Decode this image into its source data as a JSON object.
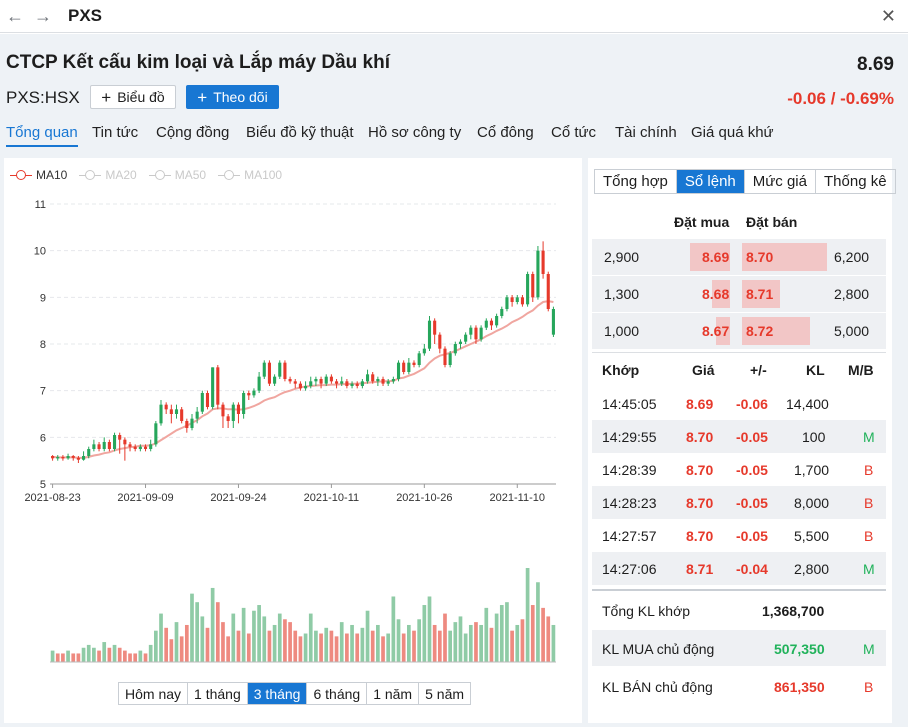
{
  "topbar": {
    "title": "PXS",
    "back_icon": "←",
    "forward_icon": "→",
    "close_icon": "✕"
  },
  "header": {
    "company": "CTCP Kết cấu kim loại và Lắp máy Dầu khí",
    "price": "8.69",
    "ticker": "PXS:HSX",
    "chart_button": "Biểu đồ",
    "follow_button": "Theo dõi",
    "change": "-0.06 / -0.69%"
  },
  "tabs": [
    "Tổng quan",
    "Tin tức",
    "Cộng đồng",
    "Biểu đồ kỹ thuật",
    "Hồ sơ công ty",
    "Cổ đông",
    "Cổ tức",
    "Tài chính",
    "Giá quá khứ"
  ],
  "chart": {
    "legend": [
      "MA10",
      "MA20",
      "MA50",
      "MA100"
    ],
    "ranges": [
      "Hôm nay",
      "1 tháng",
      "3 tháng",
      "6 tháng",
      "1 năm",
      "5 năm"
    ],
    "active_range": "3 tháng"
  },
  "chart_data": {
    "type": "candlestick",
    "y_ticks": [
      "11",
      "10",
      "9",
      "8",
      "7",
      "6",
      "5"
    ],
    "ylim": [
      5,
      11
    ],
    "x_ticks": [
      "2021-08-23",
      "2021-09-09",
      "2021-09-24",
      "2021-10-11",
      "2021-10-26",
      "2021-11-10"
    ],
    "colors": {
      "up": "#26a65b",
      "down": "#e6392b",
      "ma10": "#f0a6a0",
      "vol_up": "#8fcba6",
      "vol_down": "#ee8a80"
    },
    "candles": [
      [
        5.6,
        5.55,
        5.62,
        5.5
      ],
      [
        5.55,
        5.58,
        5.62,
        5.5
      ],
      [
        5.58,
        5.55,
        5.62,
        5.5
      ],
      [
        5.55,
        5.6,
        5.65,
        5.52
      ],
      [
        5.6,
        5.56,
        5.62,
        5.5
      ],
      [
        5.56,
        5.52,
        5.6,
        5.45
      ],
      [
        5.52,
        5.6,
        5.7,
        5.5
      ],
      [
        5.6,
        5.75,
        5.8,
        5.55
      ],
      [
        5.75,
        5.85,
        5.95,
        5.7
      ],
      [
        5.85,
        5.75,
        5.9,
        5.7
      ],
      [
        5.75,
        5.9,
        6.0,
        5.7
      ],
      [
        5.9,
        5.75,
        5.95,
        5.7
      ],
      [
        5.75,
        6.05,
        6.1,
        5.7
      ],
      [
        6.05,
        5.95,
        6.1,
        5.65
      ],
      [
        5.95,
        5.85,
        6.0,
        5.5
      ],
      [
        5.85,
        5.8,
        5.9,
        5.7
      ],
      [
        5.8,
        5.75,
        5.85,
        5.7
      ],
      [
        5.75,
        5.8,
        5.85,
        5.7
      ],
      [
        5.8,
        5.75,
        5.85,
        5.7
      ],
      [
        5.75,
        5.85,
        5.95,
        5.7
      ],
      [
        5.85,
        6.3,
        6.35,
        5.8
      ],
      [
        6.3,
        6.7,
        6.8,
        6.25
      ],
      [
        6.7,
        6.6,
        6.75,
        6.5
      ],
      [
        6.6,
        6.5,
        6.7,
        6.3
      ],
      [
        6.5,
        6.6,
        6.7,
        6.4
      ],
      [
        6.6,
        6.35,
        6.65,
        6.3
      ],
      [
        6.35,
        6.2,
        6.4,
        6.1
      ],
      [
        6.2,
        6.4,
        6.5,
        6.15
      ],
      [
        6.4,
        6.55,
        6.65,
        6.3
      ],
      [
        6.55,
        6.95,
        7.0,
        6.5
      ],
      [
        6.95,
        6.65,
        7.0,
        6.6
      ],
      [
        6.65,
        7.5,
        7.5,
        6.6
      ],
      [
        7.5,
        6.7,
        7.55,
        6.6
      ],
      [
        6.7,
        6.45,
        6.75,
        6.2
      ],
      [
        6.45,
        6.35,
        6.5,
        6.2
      ],
      [
        6.35,
        6.7,
        6.75,
        6.2
      ],
      [
        6.7,
        6.5,
        6.75,
        6.3
      ],
      [
        6.5,
        6.95,
        7.0,
        6.4
      ],
      [
        6.95,
        6.9,
        7.0,
        6.8
      ],
      [
        6.9,
        7.0,
        7.05,
        6.85
      ],
      [
        7.0,
        7.3,
        7.4,
        6.95
      ],
      [
        7.3,
        7.6,
        7.65,
        7.25
      ],
      [
        7.6,
        7.15,
        7.65,
        7.1
      ],
      [
        7.15,
        7.3,
        7.35,
        7.1
      ],
      [
        7.3,
        7.6,
        7.65,
        7.25
      ],
      [
        7.6,
        7.25,
        7.65,
        7.2
      ],
      [
        7.25,
        7.2,
        7.3,
        7.15
      ],
      [
        7.2,
        7.15,
        7.25,
        7.05
      ],
      [
        7.15,
        7.05,
        7.2,
        7.0
      ],
      [
        7.05,
        7.1,
        7.2,
        7.0
      ],
      [
        7.1,
        7.2,
        7.3,
        7.05
      ],
      [
        7.2,
        7.25,
        7.3,
        7.1
      ],
      [
        7.25,
        7.15,
        7.3,
        7.05
      ],
      [
        7.15,
        7.3,
        7.35,
        7.1
      ],
      [
        7.3,
        7.2,
        7.35,
        7.15
      ],
      [
        7.2,
        7.15,
        7.25,
        7.05
      ],
      [
        7.15,
        7.2,
        7.3,
        7.1
      ],
      [
        7.2,
        7.1,
        7.25,
        7.05
      ],
      [
        7.1,
        7.15,
        7.2,
        7.05
      ],
      [
        7.15,
        7.1,
        7.2,
        7.05
      ],
      [
        7.1,
        7.2,
        7.25,
        7.05
      ],
      [
        7.2,
        7.35,
        7.45,
        7.15
      ],
      [
        7.35,
        7.2,
        7.4,
        7.15
      ],
      [
        7.2,
        7.25,
        7.3,
        7.1
      ],
      [
        7.25,
        7.15,
        7.3,
        7.1
      ],
      [
        7.15,
        7.2,
        7.25,
        7.1
      ],
      [
        7.2,
        7.25,
        7.3,
        7.15
      ],
      [
        7.25,
        7.6,
        7.65,
        7.2
      ],
      [
        7.6,
        7.4,
        7.65,
        7.35
      ],
      [
        7.4,
        7.6,
        7.7,
        7.35
      ],
      [
        7.6,
        7.55,
        7.65,
        7.5
      ],
      [
        7.55,
        7.8,
        7.85,
        7.5
      ],
      [
        7.8,
        7.9,
        8.0,
        7.75
      ],
      [
        7.9,
        8.5,
        8.6,
        7.85
      ],
      [
        8.5,
        8.2,
        8.55,
        8.0
      ],
      [
        8.2,
        7.9,
        8.25,
        7.8
      ],
      [
        7.9,
        7.55,
        7.95,
        7.5
      ],
      [
        7.55,
        7.8,
        7.85,
        7.5
      ],
      [
        7.8,
        8.0,
        8.05,
        7.75
      ],
      [
        8.0,
        8.05,
        8.1,
        7.9
      ],
      [
        8.05,
        8.2,
        8.25,
        8.0
      ],
      [
        8.2,
        8.35,
        8.4,
        8.1
      ],
      [
        8.35,
        8.1,
        8.4,
        8.0
      ],
      [
        8.1,
        8.35,
        8.4,
        8.05
      ],
      [
        8.35,
        8.5,
        8.55,
        8.3
      ],
      [
        8.5,
        8.4,
        8.55,
        8.3
      ],
      [
        8.4,
        8.6,
        8.65,
        8.35
      ],
      [
        8.6,
        8.75,
        8.8,
        8.55
      ],
      [
        8.75,
        9.0,
        9.05,
        8.7
      ],
      [
        9.0,
        8.9,
        9.05,
        8.8
      ],
      [
        8.9,
        9.0,
        9.05,
        8.85
      ],
      [
        9.0,
        8.85,
        9.05,
        8.8
      ],
      [
        8.85,
        9.5,
        9.55,
        8.8
      ],
      [
        9.5,
        9.0,
        9.55,
        8.9
      ],
      [
        9.0,
        10.0,
        10.1,
        8.95
      ],
      [
        10.0,
        9.5,
        10.2,
        9.4
      ],
      [
        9.5,
        8.75,
        9.55,
        8.7
      ],
      [
        8.2,
        8.75,
        8.8,
        8.15
      ]
    ],
    "ma10": [
      5.58,
      5.57,
      5.57,
      5.57,
      5.57,
      5.56,
      5.56,
      5.58,
      5.61,
      5.63,
      5.66,
      5.68,
      5.72,
      5.75,
      5.77,
      5.79,
      5.8,
      5.82,
      5.82,
      5.83,
      5.87,
      5.94,
      6.01,
      6.08,
      6.15,
      6.2,
      6.25,
      6.31,
      6.37,
      6.45,
      6.51,
      6.6,
      6.62,
      6.62,
      6.6,
      6.6,
      6.59,
      6.6,
      6.63,
      6.67,
      6.72,
      6.79,
      6.83,
      6.86,
      6.92,
      6.97,
      7.0,
      7.04,
      7.07,
      7.09,
      7.1,
      7.11,
      7.12,
      7.12,
      7.13,
      7.13,
      7.14,
      7.14,
      7.15,
      7.15,
      7.16,
      7.17,
      7.18,
      7.19,
      7.2,
      7.2,
      7.21,
      7.26,
      7.28,
      7.32,
      7.36,
      7.42,
      7.48,
      7.6,
      7.69,
      7.75,
      7.78,
      7.81,
      7.85,
      7.9,
      7.95,
      8.0,
      8.05,
      8.1,
      8.17,
      8.22,
      8.28,
      8.33,
      8.39,
      8.47,
      8.52,
      8.58,
      8.66,
      8.72,
      8.82,
      8.9,
      8.92,
      8.9
    ],
    "volume_up": [
      1,
      0,
      0,
      1,
      0,
      0,
      1,
      1,
      1,
      0,
      1,
      0,
      1,
      0,
      0,
      0,
      0,
      1,
      0,
      1,
      1,
      1,
      0,
      0,
      1,
      0,
      0,
      1,
      1,
      1,
      0,
      1,
      0,
      0,
      0,
      1,
      0,
      1,
      0,
      1,
      1,
      1,
      0,
      1,
      1,
      0,
      0,
      0,
      0,
      1,
      1,
      1,
      0,
      1,
      0,
      0,
      1,
      0,
      1,
      0,
      1,
      1,
      0,
      1,
      0,
      1,
      1,
      1,
      0,
      1,
      0,
      1,
      1,
      1,
      0,
      0,
      0,
      1,
      1,
      1,
      1,
      1,
      0,
      1,
      1,
      0,
      1,
      1,
      1,
      0,
      1,
      0,
      1,
      0,
      1,
      0,
      0,
      1
    ],
    "volume": [
      4,
      3,
      3,
      4,
      3,
      3,
      5,
      6,
      5,
      4,
      7,
      5,
      6,
      5,
      4,
      3,
      3,
      4,
      3,
      6,
      11,
      17,
      12,
      8,
      14,
      9,
      13,
      24,
      21,
      16,
      12,
      26,
      21,
      14,
      9,
      17,
      11,
      19,
      10,
      18,
      20,
      16,
      11,
      13,
      17,
      15,
      14,
      11,
      9,
      10,
      17,
      11,
      10,
      12,
      11,
      9,
      14,
      10,
      13,
      10,
      12,
      18,
      11,
      13,
      9,
      10,
      23,
      15,
      10,
      13,
      11,
      15,
      20,
      23,
      13,
      11,
      17,
      11,
      14,
      16,
      10,
      13,
      14,
      13,
      19,
      12,
      17,
      20,
      21,
      11,
      13,
      15,
      33,
      20,
      28,
      19,
      16,
      13
    ]
  },
  "order_book": {
    "tabs": [
      "Tổng hợp",
      "Sổ lệnh",
      "Mức giá",
      "Thống kê"
    ],
    "active_tab": "Sổ lệnh",
    "bid_header": "Đặt mua",
    "ask_header": "Đặt bán",
    "rows": [
      {
        "bid_vol": "2,900",
        "bid": "8.69",
        "ask": "8.70",
        "ask_vol": "6,200",
        "bid_ratio": 0.33,
        "ask_ratio": 1.0
      },
      {
        "bid_vol": "1,300",
        "bid": "8.68",
        "ask": "8.71",
        "ask_vol": "2,800",
        "bid_ratio": 0.15,
        "ask_ratio": 0.45
      },
      {
        "bid_vol": "1,000",
        "bid": "8.67",
        "ask": "8.72",
        "ask_vol": "5,000",
        "bid_ratio": 0.12,
        "ask_ratio": 0.8
      }
    ]
  },
  "trades": {
    "headers": [
      "Khớp",
      "Giá",
      "+/-",
      "KL",
      "M/B"
    ],
    "rows": [
      {
        "time": "14:45:05",
        "price": "8.69",
        "chg": "-0.06",
        "vol": "14,400",
        "side": ""
      },
      {
        "time": "14:29:55",
        "price": "8.70",
        "chg": "-0.05",
        "vol": "100",
        "side": "M"
      },
      {
        "time": "14:28:39",
        "price": "8.70",
        "chg": "-0.05",
        "vol": "1,700",
        "side": "B"
      },
      {
        "time": "14:28:23",
        "price": "8.70",
        "chg": "-0.05",
        "vol": "8,000",
        "side": "B"
      },
      {
        "time": "14:27:57",
        "price": "8.70",
        "chg": "-0.05",
        "vol": "5,500",
        "side": "B"
      },
      {
        "time": "14:27:06",
        "price": "8.71",
        "chg": "-0.04",
        "vol": "2,800",
        "side": "M"
      }
    ]
  },
  "summary": {
    "total_label": "Tổng KL khớp",
    "total_value": "1,368,700",
    "buy_label": "KL MUA chủ động",
    "buy_value": "507,350",
    "buy_side": "M",
    "sell_label": "KL BÁN chủ động",
    "sell_value": "861,350",
    "sell_side": "B"
  }
}
